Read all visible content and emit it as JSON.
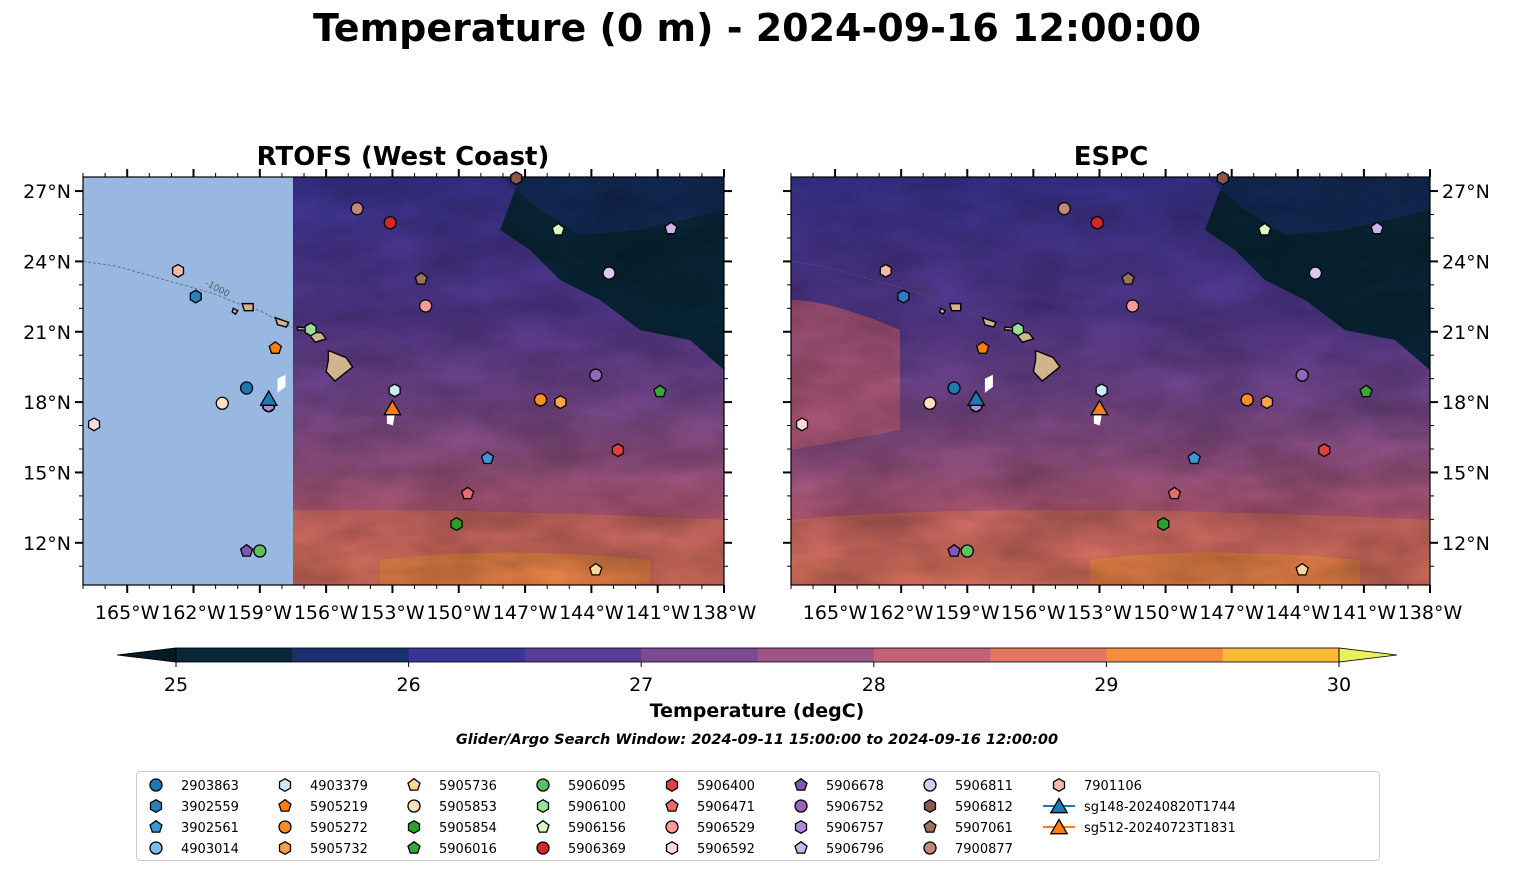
{
  "title": "Temperature (0 m) - 2024-09-16 12:00:00",
  "panels": [
    {
      "title": "RTOFS (West Coast)",
      "model_domain_west_lon": -157.5
    },
    {
      "title": "ESPC"
    }
  ],
  "map": {
    "lon_range": [
      -167,
      -138
    ],
    "lat_range": [
      10.2,
      27.6
    ],
    "lon_ticks": [
      {
        "value": -165,
        "label": "165°W"
      },
      {
        "value": -162,
        "label": "162°W"
      },
      {
        "value": -159,
        "label": "159°W"
      },
      {
        "value": -156,
        "label": "156°W"
      },
      {
        "value": -153,
        "label": "153°W"
      },
      {
        "value": -150,
        "label": "150°W"
      },
      {
        "value": -147,
        "label": "147°W"
      },
      {
        "value": -144,
        "label": "144°W"
      },
      {
        "value": -141,
        "label": "141°W"
      },
      {
        "value": -138,
        "label": "138°W"
      }
    ],
    "lat_ticks": [
      {
        "value": 12,
        "label": "12°N"
      },
      {
        "value": 15,
        "label": "15°N"
      },
      {
        "value": 18,
        "label": "18°N"
      },
      {
        "value": 21,
        "label": "21°N"
      },
      {
        "value": 24,
        "label": "24°N"
      },
      {
        "value": 27,
        "label": "27°N"
      }
    ],
    "contour_label": "-1000"
  },
  "colorbar": {
    "label": "Temperature (degC)",
    "ticks": [
      {
        "value": 25,
        "label": "25"
      },
      {
        "value": 26,
        "label": "26"
      },
      {
        "value": 27,
        "label": "27"
      },
      {
        "value": 28,
        "label": "28"
      },
      {
        "value": 29,
        "label": "29"
      },
      {
        "value": 30,
        "label": "30"
      }
    ],
    "range": [
      25,
      30
    ],
    "colors": [
      "#092738",
      "#1b2e6e",
      "#3a3495",
      "#5a3c96",
      "#7a4a92",
      "#9d5584",
      "#c4607a",
      "#e07560",
      "#f28c3e",
      "#f8ba3a"
    ],
    "under": "#061a25",
    "over": "#e8f05a"
  },
  "search_window": "Glider/Argo Search Window: 2024-09-11 15:00:00 to 2024-09-16 12:00:00",
  "floats": [
    {
      "id": "2903863",
      "marker": "circle",
      "color": "#1f77b4",
      "lon": -159.6,
      "lat": 18.6
    },
    {
      "id": "3902559",
      "marker": "hexagon",
      "color": "#2e7fc0",
      "lon": -161.9,
      "lat": 22.5
    },
    {
      "id": "3902561",
      "marker": "pentagon",
      "color": "#3b96d6",
      "lon": -148.7,
      "lat": 15.6
    },
    {
      "id": "4903014",
      "marker": "circle",
      "color": "#7cc0ea",
      "lon": -158.6,
      "lat": 17.85
    },
    {
      "id": "4903379",
      "marker": "hexagon",
      "color": "#cfe9f9",
      "lon": -152.9,
      "lat": 18.5
    },
    {
      "id": "5905219",
      "marker": "pentagon",
      "color": "#ff7f0e",
      "lon": -158.3,
      "lat": 20.3
    },
    {
      "id": "5905272",
      "marker": "circle",
      "color": "#ff8c26",
      "lon": -146.3,
      "lat": 18.1
    },
    {
      "id": "5905732",
      "marker": "hexagon",
      "color": "#ffa14a",
      "lon": -145.4,
      "lat": 18.0
    },
    {
      "id": "5905736",
      "marker": "pentagon",
      "color": "#ffd59a",
      "lon": -143.8,
      "lat": 10.85
    },
    {
      "id": "5905853",
      "marker": "circle",
      "color": "#ffe0c4",
      "lon": -160.7,
      "lat": 17.95
    },
    {
      "id": "5905854",
      "marker": "hexagon",
      "color": "#2ca02c",
      "lon": -150.1,
      "lat": 12.8
    },
    {
      "id": "5906016",
      "marker": "pentagon",
      "color": "#3aa63a",
      "lon": -140.9,
      "lat": 18.45
    },
    {
      "id": "5906095",
      "marker": "circle",
      "color": "#5ec05e",
      "lon": -159.0,
      "lat": 11.65
    },
    {
      "id": "5906100",
      "marker": "hexagon",
      "color": "#98e098",
      "lon": -156.7,
      "lat": 21.1
    },
    {
      "id": "5906156",
      "marker": "pentagon",
      "color": "#d8f8c8",
      "lon": -145.5,
      "lat": 25.35
    },
    {
      "id": "5906369",
      "marker": "circle",
      "color": "#d62728",
      "lon": -153.1,
      "lat": 25.65
    },
    {
      "id": "5906400",
      "marker": "hexagon",
      "color": "#e04040",
      "lon": -142.8,
      "lat": 15.95
    },
    {
      "id": "5906471",
      "marker": "pentagon",
      "color": "#ee6a6a",
      "lon": -149.6,
      "lat": 14.1
    },
    {
      "id": "5906529",
      "marker": "circle",
      "color": "#ff9a9a",
      "lon": -151.5,
      "lat": 22.1
    },
    {
      "id": "5906592",
      "marker": "hexagon",
      "color": "#ffd8d8",
      "lon": -166.5,
      "lat": 17.05
    },
    {
      "id": "5906678",
      "marker": "pentagon",
      "color": "#7e57b8",
      "lon": -159.6,
      "lat": 11.65
    },
    {
      "id": "5906752",
      "marker": "circle",
      "color": "#9467bd",
      "lon": -143.8,
      "lat": 19.15
    },
    {
      "id": "5906757",
      "marker": "hexagon",
      "color": "#b08bd6",
      "lon": -158.6,
      "lat": 17.85
    },
    {
      "id": "5906796",
      "marker": "pentagon",
      "color": "#cdb4f0",
      "lon": -140.4,
      "lat": 25.4
    },
    {
      "id": "5906811",
      "marker": "circle",
      "color": "#dcc8f5",
      "lon": -143.2,
      "lat": 23.5
    },
    {
      "id": "5906812",
      "marker": "hexagon",
      "color": "#8c564b",
      "lon": -147.4,
      "lat": 27.55
    },
    {
      "id": "5907061",
      "marker": "pentagon",
      "color": "#a0705f",
      "lon": -151.7,
      "lat": 23.25
    },
    {
      "id": "7900877",
      "marker": "circle",
      "color": "#c08878",
      "lon": -154.6,
      "lat": 26.25
    },
    {
      "id": "7901106",
      "marker": "hexagon",
      "color": "#f2b8a8",
      "lon": -162.7,
      "lat": 23.6
    },
    {
      "id": "sg148-20240820T1744",
      "marker": "triangle",
      "color": "#1f77b4",
      "lon": -158.6,
      "lat": 18.15,
      "line": "#1f77b4"
    },
    {
      "id": "sg512-20240723T1831",
      "marker": "triangle",
      "color": "#ff7f0e",
      "lon": -153.0,
      "lat": 17.75,
      "line": "#ff7f0e"
    }
  ]
}
